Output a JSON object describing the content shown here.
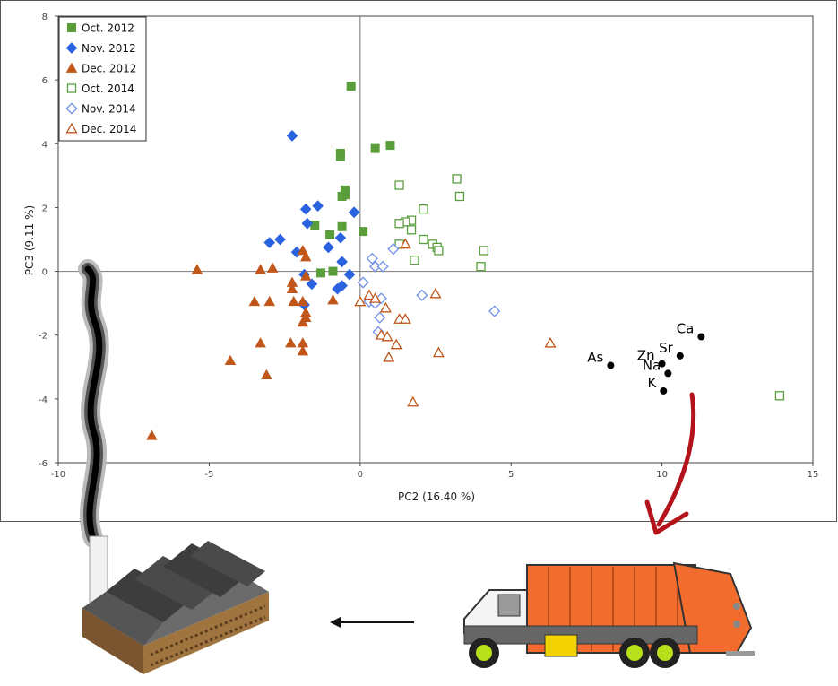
{
  "chart_data": {
    "type": "scatter",
    "xlabel": "PC2  (16.40 %)",
    "ylabel": "PC3  (9.11 %)",
    "xlim": [
      -10,
      15
    ],
    "ylim": [
      -6,
      8
    ],
    "xticks": [
      "-10",
      "-5",
      "0",
      "5",
      "10",
      "15"
    ],
    "yticks": [
      "-6",
      "-4",
      "-2",
      "0",
      "2",
      "4",
      "6",
      "8"
    ],
    "legend_position": "top-left",
    "series": [
      {
        "name": "Oct. 2012",
        "marker": "square",
        "filled": true,
        "color": "#5a9e3c",
        "points": [
          [
            -0.3,
            5.8
          ],
          [
            0.5,
            3.85
          ],
          [
            1.0,
            3.95
          ],
          [
            -0.65,
            3.7
          ],
          [
            -0.65,
            3.6
          ],
          [
            -0.5,
            2.55
          ],
          [
            -0.5,
            2.4
          ],
          [
            -0.6,
            2.35
          ],
          [
            -1.5,
            1.45
          ],
          [
            -0.6,
            1.4
          ],
          [
            -1.0,
            1.15
          ],
          [
            0.1,
            1.25
          ],
          [
            -0.9,
            0.0
          ],
          [
            -1.3,
            -0.05
          ]
        ]
      },
      {
        "name": "Nov. 2012",
        "marker": "diamond",
        "filled": true,
        "color": "#2a62e0",
        "points": [
          [
            -2.25,
            4.25
          ],
          [
            -1.4,
            2.05
          ],
          [
            -1.8,
            1.95
          ],
          [
            -1.75,
            1.5
          ],
          [
            -0.2,
            1.85
          ],
          [
            -2.65,
            1.0
          ],
          [
            -3.0,
            0.9
          ],
          [
            -1.05,
            0.75
          ],
          [
            -0.65,
            1.05
          ],
          [
            -2.1,
            0.6
          ],
          [
            -1.85,
            -0.1
          ],
          [
            -0.6,
            0.3
          ],
          [
            -0.35,
            -0.1
          ],
          [
            -1.6,
            -0.4
          ],
          [
            -0.75,
            -0.55
          ],
          [
            -0.6,
            -0.45
          ],
          [
            -1.85,
            -1.05
          ]
        ]
      },
      {
        "name": "Dec. 2012",
        "marker": "triangle",
        "filled": true,
        "color": "#c0561a",
        "points": [
          [
            -5.4,
            0.05
          ],
          [
            -2.9,
            0.1
          ],
          [
            -3.3,
            0.05
          ],
          [
            -1.9,
            0.65
          ],
          [
            -1.8,
            0.45
          ],
          [
            -2.25,
            -0.35
          ],
          [
            -2.25,
            -0.55
          ],
          [
            -1.8,
            -0.15
          ],
          [
            -2.2,
            -0.95
          ],
          [
            -1.9,
            -0.95
          ],
          [
            -1.8,
            -1.3
          ],
          [
            -1.8,
            -1.45
          ],
          [
            -0.9,
            -0.9
          ],
          [
            -3.5,
            -0.95
          ],
          [
            -3.0,
            -0.95
          ],
          [
            -1.9,
            -1.6
          ],
          [
            -3.3,
            -2.25
          ],
          [
            -2.3,
            -2.25
          ],
          [
            -1.9,
            -2.25
          ],
          [
            -1.9,
            -2.5
          ],
          [
            -4.3,
            -2.8
          ],
          [
            -3.1,
            -3.25
          ],
          [
            -6.9,
            -5.15
          ]
        ]
      },
      {
        "name": "Oct. 2014",
        "marker": "square",
        "filled": false,
        "color": "#5a9e3c",
        "points": [
          [
            3.2,
            2.9
          ],
          [
            3.3,
            2.35
          ],
          [
            1.3,
            2.7
          ],
          [
            2.1,
            1.95
          ],
          [
            1.7,
            1.6
          ],
          [
            1.5,
            1.55
          ],
          [
            1.3,
            1.5
          ],
          [
            1.7,
            1.3
          ],
          [
            2.1,
            1.0
          ],
          [
            2.4,
            0.85
          ],
          [
            2.55,
            0.75
          ],
          [
            2.6,
            0.65
          ],
          [
            1.3,
            0.85
          ],
          [
            1.8,
            0.35
          ],
          [
            4.1,
            0.65
          ],
          [
            4.0,
            0.15
          ],
          [
            13.9,
            -3.9
          ]
        ]
      },
      {
        "name": "Nov. 2014",
        "marker": "diamond",
        "filled": false,
        "color": "#6f8fe8",
        "points": [
          [
            1.1,
            0.7
          ],
          [
            0.4,
            0.4
          ],
          [
            0.5,
            0.15
          ],
          [
            0.75,
            0.15
          ],
          [
            0.1,
            -0.35
          ],
          [
            0.3,
            -0.95
          ],
          [
            0.5,
            -1.0
          ],
          [
            0.7,
            -0.85
          ],
          [
            0.65,
            -1.45
          ],
          [
            0.6,
            -1.9
          ],
          [
            2.05,
            -0.75
          ],
          [
            4.45,
            -1.25
          ]
        ]
      },
      {
        "name": "Dec. 2014",
        "marker": "triangle",
        "filled": false,
        "color": "#c0561a",
        "points": [
          [
            1.5,
            0.85
          ],
          [
            0.0,
            -0.95
          ],
          [
            0.3,
            -0.75
          ],
          [
            0.5,
            -0.85
          ],
          [
            0.85,
            -1.15
          ],
          [
            2.5,
            -0.7
          ],
          [
            1.3,
            -1.5
          ],
          [
            1.5,
            -1.5
          ],
          [
            0.7,
            -2.0
          ],
          [
            0.9,
            -2.05
          ],
          [
            1.2,
            -2.3
          ],
          [
            0.95,
            -2.7
          ],
          [
            2.6,
            -2.55
          ],
          [
            6.3,
            -2.25
          ],
          [
            1.75,
            -4.1
          ]
        ]
      }
    ],
    "variables": [
      {
        "label": "Ca",
        "x": 11.3,
        "y": -2.05
      },
      {
        "label": "Sr",
        "x": 10.6,
        "y": -2.65
      },
      {
        "label": "Zn",
        "x": 10.0,
        "y": -2.9
      },
      {
        "label": "As",
        "x": 8.3,
        "y": -2.95
      },
      {
        "label": "Na",
        "x": 10.2,
        "y": -3.2
      },
      {
        "label": "K",
        "x": 10.05,
        "y": -3.75
      }
    ]
  }
}
